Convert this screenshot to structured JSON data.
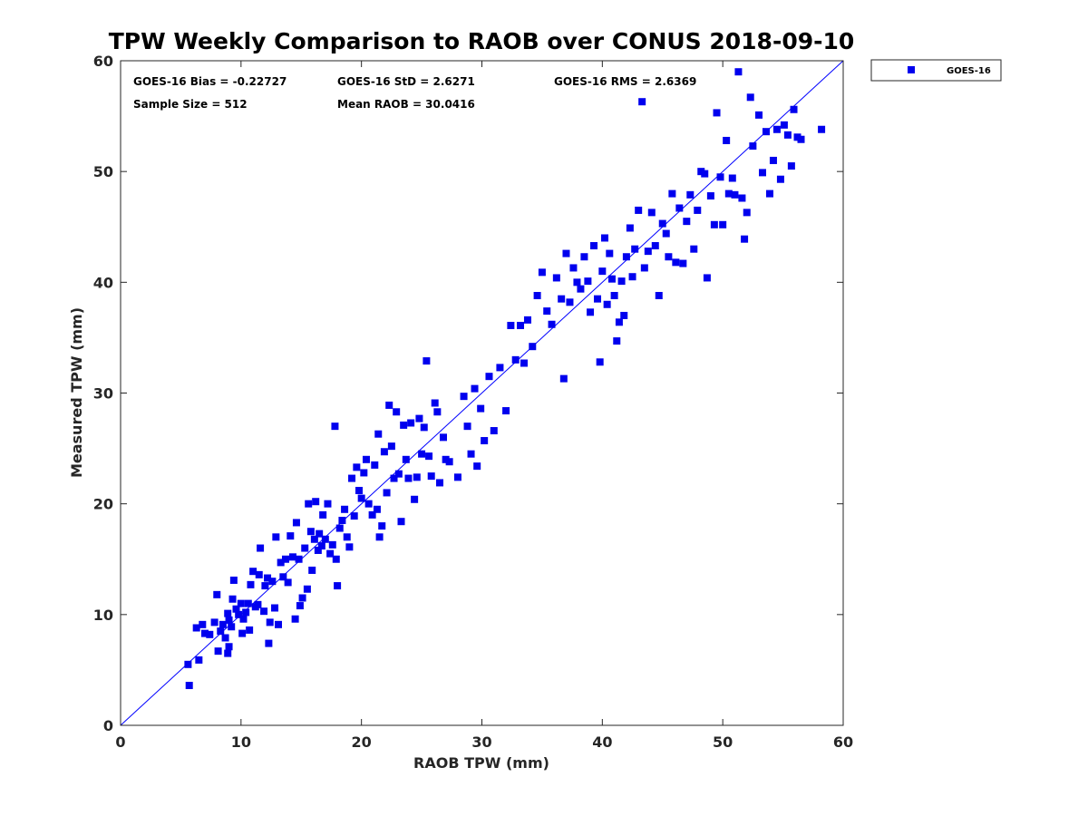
{
  "chart_data": {
    "type": "scatter",
    "title": "TPW Weekly Comparison to RAOB over CONUS 2018-09-10",
    "xlabel": "RAOB TPW (mm)",
    "ylabel": "Measured TPW (mm)",
    "xlim": [
      0,
      60
    ],
    "ylim": [
      0,
      60
    ],
    "xticks": [
      0,
      10,
      20,
      30,
      40,
      50,
      60
    ],
    "yticks": [
      0,
      10,
      20,
      30,
      40,
      50,
      60
    ],
    "grid": false,
    "legend_position": "outside-top-right",
    "reference_line": {
      "name": "1:1 line",
      "from": [
        0,
        0
      ],
      "to": [
        60,
        60
      ],
      "color": "#0000ff"
    },
    "annotations": [
      "GOES-16 Bias = -0.22727",
      "GOES-16 StD = 2.6271",
      "GOES-16 RMS = 2.6369",
      "Sample Size = 512",
      "Mean RAOB = 30.0416"
    ],
    "series": [
      {
        "name": "GOES-16",
        "color": "#0000ee",
        "marker": "square",
        "points": [
          [
            5.7,
            3.6
          ],
          [
            5.6,
            5.5
          ],
          [
            6.3,
            8.8
          ],
          [
            6.8,
            9.1
          ],
          [
            6.5,
            5.9
          ],
          [
            7.0,
            8.3
          ],
          [
            7.4,
            8.2
          ],
          [
            7.8,
            9.3
          ],
          [
            8.0,
            11.8
          ],
          [
            8.1,
            6.7
          ],
          [
            8.3,
            8.5
          ],
          [
            8.5,
            9.1
          ],
          [
            8.7,
            7.9
          ],
          [
            8.9,
            10.1
          ],
          [
            9.0,
            9.5
          ],
          [
            9.2,
            8.9
          ],
          [
            9.3,
            11.4
          ],
          [
            9.0,
            7.1
          ],
          [
            8.9,
            6.5
          ],
          [
            9.4,
            13.1
          ],
          [
            9.6,
            10.5
          ],
          [
            9.8,
            10.0
          ],
          [
            10.0,
            11.0
          ],
          [
            10.2,
            9.6
          ],
          [
            10.4,
            10.2
          ],
          [
            10.6,
            11.0
          ],
          [
            10.1,
            8.3
          ],
          [
            10.7,
            8.6
          ],
          [
            10.8,
            12.7
          ],
          [
            11.0,
            13.9
          ],
          [
            11.2,
            10.7
          ],
          [
            11.4,
            10.9
          ],
          [
            11.5,
            13.6
          ],
          [
            11.6,
            16.0
          ],
          [
            11.9,
            10.3
          ],
          [
            12.0,
            12.6
          ],
          [
            12.2,
            13.3
          ],
          [
            12.3,
            7.4
          ],
          [
            12.4,
            9.3
          ],
          [
            12.6,
            13.0
          ],
          [
            12.8,
            10.6
          ],
          [
            12.9,
            17.0
          ],
          [
            13.1,
            9.1
          ],
          [
            13.3,
            14.7
          ],
          [
            13.5,
            13.4
          ],
          [
            13.7,
            15.0
          ],
          [
            13.9,
            12.9
          ],
          [
            14.1,
            17.1
          ],
          [
            14.3,
            15.2
          ],
          [
            14.5,
            9.6
          ],
          [
            14.6,
            18.3
          ],
          [
            14.8,
            15.0
          ],
          [
            14.9,
            10.8
          ],
          [
            15.1,
            11.5
          ],
          [
            15.3,
            16.0
          ],
          [
            15.5,
            12.3
          ],
          [
            15.6,
            20.0
          ],
          [
            15.8,
            17.5
          ],
          [
            15.9,
            14.0
          ],
          [
            16.1,
            16.8
          ],
          [
            16.2,
            20.2
          ],
          [
            16.4,
            15.8
          ],
          [
            16.5,
            17.3
          ],
          [
            16.7,
            16.2
          ],
          [
            16.8,
            19.0
          ],
          [
            17.0,
            16.8
          ],
          [
            17.2,
            20.0
          ],
          [
            17.4,
            15.5
          ],
          [
            17.6,
            16.3
          ],
          [
            17.8,
            27.0
          ],
          [
            17.9,
            15.0
          ],
          [
            18.0,
            12.6
          ],
          [
            18.2,
            17.8
          ],
          [
            18.4,
            18.5
          ],
          [
            18.6,
            19.5
          ],
          [
            18.8,
            17.0
          ],
          [
            19.0,
            16.1
          ],
          [
            19.2,
            22.3
          ],
          [
            19.4,
            18.9
          ],
          [
            19.6,
            23.3
          ],
          [
            19.8,
            21.2
          ],
          [
            20.0,
            20.5
          ],
          [
            20.2,
            22.8
          ],
          [
            20.4,
            24.0
          ],
          [
            20.6,
            20.0
          ],
          [
            20.9,
            19.0
          ],
          [
            21.1,
            23.5
          ],
          [
            21.3,
            19.5
          ],
          [
            21.4,
            26.3
          ],
          [
            21.5,
            17.0
          ],
          [
            21.7,
            18.0
          ],
          [
            21.9,
            24.7
          ],
          [
            22.1,
            21.0
          ],
          [
            22.3,
            28.9
          ],
          [
            22.5,
            25.2
          ],
          [
            22.7,
            22.3
          ],
          [
            22.9,
            28.3
          ],
          [
            23.1,
            22.7
          ],
          [
            23.3,
            18.4
          ],
          [
            23.5,
            27.1
          ],
          [
            23.7,
            24.0
          ],
          [
            23.9,
            22.3
          ],
          [
            24.1,
            27.3
          ],
          [
            24.4,
            20.4
          ],
          [
            24.6,
            22.4
          ],
          [
            24.8,
            27.7
          ],
          [
            25.0,
            24.5
          ],
          [
            25.2,
            26.9
          ],
          [
            25.4,
            32.9
          ],
          [
            25.6,
            24.3
          ],
          [
            25.8,
            22.5
          ],
          [
            26.1,
            29.1
          ],
          [
            26.3,
            28.3
          ],
          [
            26.5,
            21.9
          ],
          [
            26.8,
            26.0
          ],
          [
            27.0,
            24.0
          ],
          [
            27.3,
            23.8
          ],
          [
            28.0,
            22.4
          ],
          [
            28.5,
            29.7
          ],
          [
            28.8,
            27.0
          ],
          [
            29.1,
            24.5
          ],
          [
            29.4,
            30.4
          ],
          [
            29.6,
            23.4
          ],
          [
            29.9,
            28.6
          ],
          [
            30.2,
            25.7
          ],
          [
            30.6,
            31.5
          ],
          [
            31.0,
            26.6
          ],
          [
            31.5,
            32.3
          ],
          [
            32.0,
            28.4
          ],
          [
            32.4,
            36.1
          ],
          [
            32.8,
            33.0
          ],
          [
            33.2,
            36.1
          ],
          [
            33.5,
            32.7
          ],
          [
            33.8,
            36.6
          ],
          [
            34.2,
            34.2
          ],
          [
            34.6,
            38.8
          ],
          [
            35.0,
            40.9
          ],
          [
            35.4,
            37.4
          ],
          [
            35.8,
            36.2
          ],
          [
            36.2,
            40.4
          ],
          [
            36.6,
            38.5
          ],
          [
            36.8,
            31.3
          ],
          [
            37.0,
            42.6
          ],
          [
            37.3,
            38.2
          ],
          [
            37.6,
            41.3
          ],
          [
            37.9,
            40.0
          ],
          [
            38.2,
            39.4
          ],
          [
            38.5,
            42.3
          ],
          [
            38.8,
            40.1
          ],
          [
            39.0,
            37.3
          ],
          [
            39.3,
            43.3
          ],
          [
            39.6,
            38.5
          ],
          [
            39.8,
            32.8
          ],
          [
            40.0,
            41.0
          ],
          [
            40.2,
            44.0
          ],
          [
            40.4,
            38.0
          ],
          [
            40.6,
            42.6
          ],
          [
            40.8,
            40.3
          ],
          [
            41.0,
            38.8
          ],
          [
            41.2,
            34.7
          ],
          [
            41.4,
            36.4
          ],
          [
            41.6,
            40.1
          ],
          [
            41.8,
            37.0
          ],
          [
            42.0,
            42.3
          ],
          [
            42.3,
            44.9
          ],
          [
            42.5,
            40.5
          ],
          [
            42.7,
            43.0
          ],
          [
            43.0,
            46.5
          ],
          [
            43.3,
            56.3
          ],
          [
            43.5,
            41.3
          ],
          [
            43.8,
            42.8
          ],
          [
            44.1,
            46.3
          ],
          [
            44.4,
            43.3
          ],
          [
            44.7,
            38.8
          ],
          [
            45.0,
            45.3
          ],
          [
            45.3,
            44.4
          ],
          [
            45.5,
            42.3
          ],
          [
            45.8,
            48.0
          ],
          [
            46.1,
            41.8
          ],
          [
            46.4,
            46.7
          ],
          [
            46.7,
            41.7
          ],
          [
            47.0,
            45.5
          ],
          [
            47.3,
            47.9
          ],
          [
            47.6,
            43.0
          ],
          [
            47.9,
            46.5
          ],
          [
            48.2,
            50.0
          ],
          [
            48.5,
            49.8
          ],
          [
            48.7,
            40.4
          ],
          [
            49.0,
            47.8
          ],
          [
            49.3,
            45.2
          ],
          [
            49.5,
            55.3
          ],
          [
            49.8,
            49.5
          ],
          [
            50.0,
            45.2
          ],
          [
            50.3,
            52.8
          ],
          [
            50.5,
            48.0
          ],
          [
            50.8,
            49.4
          ],
          [
            51.0,
            47.9
          ],
          [
            51.3,
            59.0
          ],
          [
            51.6,
            47.6
          ],
          [
            51.8,
            43.9
          ],
          [
            52.0,
            46.3
          ],
          [
            52.3,
            56.7
          ],
          [
            52.5,
            52.3
          ],
          [
            53.0,
            55.1
          ],
          [
            53.3,
            49.9
          ],
          [
            53.6,
            53.6
          ],
          [
            53.9,
            48.0
          ],
          [
            54.2,
            51.0
          ],
          [
            54.5,
            53.8
          ],
          [
            54.8,
            49.3
          ],
          [
            55.1,
            54.2
          ],
          [
            55.4,
            53.3
          ],
          [
            55.7,
            50.5
          ],
          [
            55.9,
            55.6
          ],
          [
            56.2,
            53.1
          ],
          [
            56.5,
            52.9
          ],
          [
            58.2,
            53.8
          ]
        ]
      }
    ]
  }
}
